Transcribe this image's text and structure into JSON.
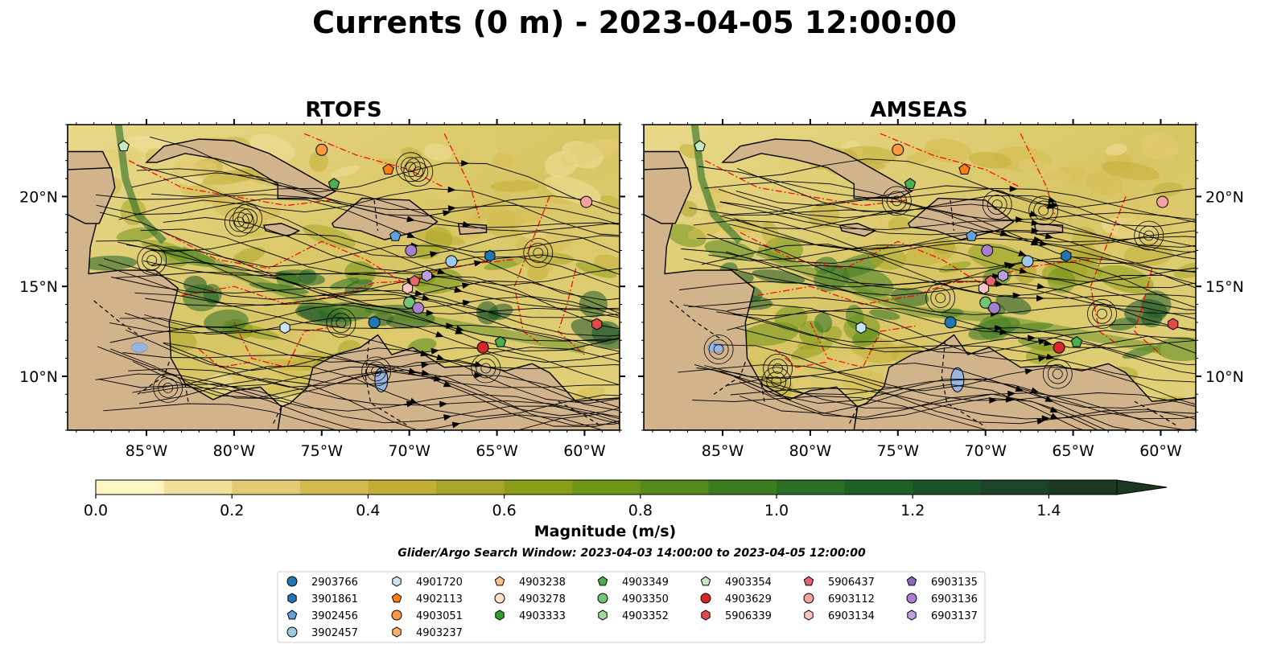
{
  "title": "Currents (0 m) - 2023-04-05 12:00:00",
  "search_window": "Glider/Argo Search Window: 2023-04-03 14:00:00 to 2023-04-05 12:00:00",
  "chart_data": [
    {
      "type": "heatmap",
      "title": "RTOFS",
      "xlim": [
        -89.5,
        -58.0
      ],
      "ylim": [
        7.0,
        24.0
      ],
      "x_ticks": [
        "85°W",
        "80°W",
        "75°W",
        "70°W",
        "65°W",
        "60°W"
      ],
      "x_tick_values": [
        -85,
        -80,
        -75,
        -70,
        -65,
        -60
      ],
      "y_ticks": [
        "10°N",
        "15°N",
        "20°N"
      ],
      "y_tick_values": [
        10,
        15,
        20
      ],
      "y_tick_side": "left",
      "overlay": "streamlines"
    },
    {
      "type": "heatmap",
      "title": "AMSEAS",
      "xlim": [
        -89.5,
        -58.0
      ],
      "ylim": [
        7.0,
        24.0
      ],
      "x_ticks": [
        "85°W",
        "80°W",
        "75°W",
        "70°W",
        "65°W",
        "60°W"
      ],
      "x_tick_values": [
        -85,
        -80,
        -75,
        -70,
        -65,
        -60
      ],
      "y_ticks": [
        "10°N",
        "15°N",
        "20°N"
      ],
      "y_tick_values": [
        10,
        15,
        20
      ],
      "y_tick_side": "right",
      "overlay": "streamlines"
    }
  ],
  "colorbar": {
    "label": "Magnitude (m/s)",
    "min": 0.0,
    "max": 1.5,
    "extend": "max",
    "tick_labels": [
      "0.0",
      "0.2",
      "0.4",
      "0.6",
      "0.8",
      "1.0",
      "1.2",
      "1.4"
    ],
    "tick_values": [
      0.0,
      0.2,
      0.4,
      0.6,
      0.8,
      1.0,
      1.2,
      1.4
    ],
    "colors": [
      "#fdf6c3",
      "#f0e09a",
      "#e2cc73",
      "#d4bb50",
      "#c3af38",
      "#a9a528",
      "#8a9e1a",
      "#6e9418",
      "#54891c",
      "#3c7c21",
      "#2a6e26",
      "#1e6128",
      "#1a5328",
      "#1b4526",
      "#1c3822"
    ]
  },
  "legend": {
    "columns": [
      [
        {
          "id": "2903766",
          "marker": "circle",
          "color": "#1f77b4"
        },
        {
          "id": "3901861",
          "marker": "hexagon",
          "color": "#1f77b4"
        },
        {
          "id": "3902456",
          "marker": "pentagon",
          "color": "#5fa2dd"
        },
        {
          "id": "3902457",
          "marker": "circle",
          "color": "#9ecae9"
        }
      ],
      [
        {
          "id": "4901720",
          "marker": "hexagon",
          "color": "#c6e4f7"
        },
        {
          "id": "4902113",
          "marker": "pentagon",
          "color": "#ff7f0e"
        },
        {
          "id": "4903051",
          "marker": "circle",
          "color": "#fd9840"
        },
        {
          "id": "4903237",
          "marker": "hexagon",
          "color": "#fdae6b"
        }
      ],
      [
        {
          "id": "4903238",
          "marker": "pentagon",
          "color": "#fdc38d"
        },
        {
          "id": "4903278",
          "marker": "circle",
          "color": "#fde0c5"
        },
        {
          "id": "4903333",
          "marker": "hexagon",
          "color": "#2ca02c"
        }
      ],
      [
        {
          "id": "4903349",
          "marker": "pentagon",
          "color": "#4cae4c"
        },
        {
          "id": "4903350",
          "marker": "circle",
          "color": "#74c476"
        },
        {
          "id": "4903352",
          "marker": "hexagon",
          "color": "#a1d99b"
        }
      ],
      [
        {
          "id": "4903354",
          "marker": "pentagon",
          "color": "#c7e9c0"
        },
        {
          "id": "4903629",
          "marker": "circle",
          "color": "#d62728"
        },
        {
          "id": "5906339",
          "marker": "hexagon",
          "color": "#e04a4a"
        }
      ],
      [
        {
          "id": "5906437",
          "marker": "pentagon",
          "color": "#e8636d"
        },
        {
          "id": "6903112",
          "marker": "circle",
          "color": "#f4a29f"
        },
        {
          "id": "6903134",
          "marker": "hexagon",
          "color": "#f8c5c0"
        }
      ],
      [
        {
          "id": "6903135",
          "marker": "pentagon",
          "color": "#9467bd"
        },
        {
          "id": "6903136",
          "marker": "circle",
          "color": "#a77fcf"
        },
        {
          "id": "6903137",
          "marker": "hexagon",
          "color": "#bc9fe0"
        }
      ]
    ]
  },
  "platforms": [
    {
      "id": "4903354",
      "lon": -86.3,
      "lat": 22.8
    },
    {
      "id": "4903051",
      "lon": -75.0,
      "lat": 22.6
    },
    {
      "id": "4902113",
      "lon": -71.2,
      "lat": 21.5
    },
    {
      "id": "4903349",
      "lon": -74.3,
      "lat": 20.7
    },
    {
      "id": "6903112",
      "lon": -59.9,
      "lat": 19.7
    },
    {
      "id": "3902456",
      "lon": -70.8,
      "lat": 17.8
    },
    {
      "id": "6903136",
      "lon": -69.9,
      "lat": 17.0
    },
    {
      "id": "3901861",
      "lon": -65.4,
      "lat": 16.7
    },
    {
      "id": "3902457",
      "lon": -67.6,
      "lat": 16.4
    },
    {
      "id": "6903137",
      "lon": -69.0,
      "lat": 15.6
    },
    {
      "id": "5906437",
      "lon": -69.7,
      "lat": 15.3
    },
    {
      "id": "6903134",
      "lon": -70.1,
      "lat": 14.9
    },
    {
      "id": "4903350",
      "lon": -70.0,
      "lat": 14.1
    },
    {
      "id": "6903136",
      "lon": -69.5,
      "lat": 13.8
    },
    {
      "id": "2903766",
      "lon": -72.0,
      "lat": 13.0
    },
    {
      "id": "4901720",
      "lon": -77.1,
      "lat": 12.7
    },
    {
      "id": "4903629",
      "lon": -65.8,
      "lat": 11.6
    },
    {
      "id": "4903349",
      "lon": -64.8,
      "lat": 11.9
    },
    {
      "id": "5906339",
      "lon": -59.3,
      "lat": 12.9
    }
  ]
}
